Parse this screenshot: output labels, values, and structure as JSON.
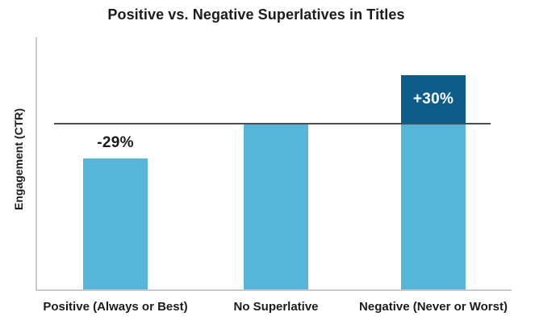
{
  "chart_data": {
    "type": "bar",
    "title": "Positive vs. Negative Superlatives in Titles",
    "ylabel": "Engagement (CTR)",
    "xlabel": "",
    "categories": [
      "Positive (Always or Best)",
      "No Superlative",
      "Negative (Never or Worst)"
    ],
    "values": [
      -29,
      0,
      30
    ],
    "value_labels": [
      "-29%",
      "",
      "+30%"
    ],
    "unit": "percent change vs. baseline",
    "baseline_note": "No Superlative bar top sits exactly on the horizontal reference line (0% baseline engagement)",
    "legend": "none",
    "grid": "off",
    "colors": {
      "bar_fill": "#55b6d9",
      "above_baseline_fill": "#0d5c8a",
      "text": "#1c1c1e",
      "value_label_positive": "#ffffff",
      "value_label_negative": "#1c1c1e",
      "axis_line": "#c9c9c9",
      "reference_line": "#4d4d4d",
      "background": "#ffffff"
    }
  }
}
